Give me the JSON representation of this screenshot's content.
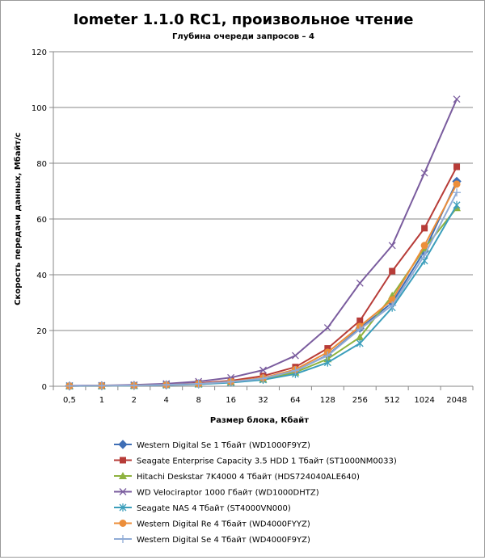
{
  "chart_data": {
    "type": "line",
    "title": "Iometer 1.1.0 RC1, произвольное чтение",
    "subtitle": "Глубина очереди запросов – 4",
    "xlabel": "Размер блока, Кбайт",
    "ylabel": "Скорость передачи данных, Мбайт/с",
    "ylim": [
      0,
      120
    ],
    "yticks": [
      0,
      20,
      40,
      60,
      80,
      100,
      120
    ],
    "grid": "horizontal",
    "legend_position": "bottom",
    "categories": [
      "0,5",
      "1",
      "2",
      "4",
      "8",
      "16",
      "32",
      "64",
      "128",
      "256",
      "512",
      "1024",
      "2048"
    ],
    "series": [
      {
        "name": "Western Digital Se 1 Тбайт (WD1000F9YZ)",
        "color": "#3f6eb5",
        "marker": "diamond",
        "values": [
          0.1,
          0.2,
          0.3,
          0.5,
          0.9,
          1.6,
          2.7,
          5.5,
          11.2,
          20.8,
          30.0,
          48.5,
          73.5
        ]
      },
      {
        "name": "Seagate Enterprise Capacity 3.5 HDD 1 Тбайт (ST1000NM0033)",
        "color": "#b73c38",
        "marker": "square",
        "values": [
          0.1,
          0.2,
          0.3,
          0.6,
          1.1,
          2.0,
          3.7,
          6.9,
          13.6,
          23.5,
          41.3,
          56.7,
          78.7
        ]
      },
      {
        "name": "Hitachi Deskstar 7K4000 4 Тбайт (HDS724040ALE640)",
        "color": "#8eb23f",
        "marker": "triangle",
        "values": [
          0.1,
          0.1,
          0.2,
          0.5,
          0.8,
          1.5,
          2.5,
          5.0,
          9.8,
          17.6,
          32.5,
          49.5,
          64.0
        ]
      },
      {
        "name": "WD Velociraptor 1000 Гбайт (WD1000DHTZ)",
        "color": "#7a5c9e",
        "marker": "x",
        "values": [
          0.2,
          0.3,
          0.5,
          0.9,
          1.7,
          3.1,
          5.8,
          11.0,
          21.0,
          37.0,
          50.5,
          76.5,
          103.0
        ]
      },
      {
        "name": "Seagate NAS 4 Тбайт (ST4000VN000)",
        "color": "#3b9ebb",
        "marker": "star",
        "values": [
          0.1,
          0.1,
          0.2,
          0.4,
          0.7,
          1.3,
          2.3,
          4.4,
          8.5,
          15.4,
          28.2,
          45.0,
          65.0
        ]
      },
      {
        "name": "Western Digital Re 4 Тбайт (WD4000FYYZ)",
        "color": "#ec8e3a",
        "marker": "circle",
        "values": [
          0.1,
          0.2,
          0.3,
          0.5,
          0.9,
          1.7,
          3.0,
          6.0,
          12.2,
          21.5,
          31.0,
          50.5,
          72.5
        ]
      },
      {
        "name": "Western Digital Se 4 Тбайт (WD4000F9YZ)",
        "color": "#8fabd6",
        "marker": "plus",
        "values": [
          0.1,
          0.2,
          0.3,
          0.5,
          0.9,
          1.6,
          2.8,
          5.6,
          11.0,
          20.5,
          29.0,
          47.0,
          69.5
        ]
      }
    ]
  }
}
